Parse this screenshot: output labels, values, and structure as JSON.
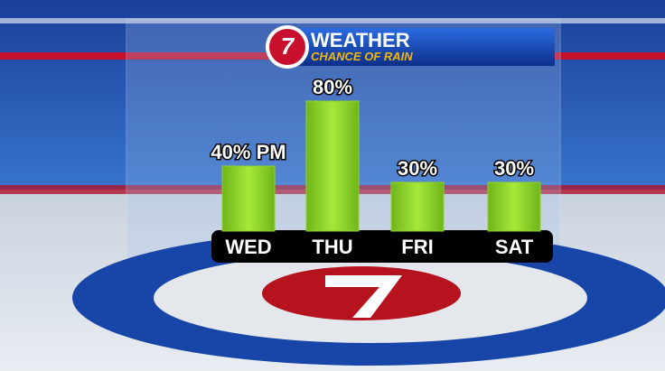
{
  "chart_data": {
    "type": "bar",
    "logo": "7",
    "title": "WEATHER",
    "subtitle": "CHANCE OF RAIN",
    "categories": [
      "WED",
      "THU",
      "FRI",
      "SAT"
    ],
    "values": [
      40,
      80,
      30,
      30
    ],
    "value_labels": [
      "40% PM",
      "80%",
      "30%",
      "30%"
    ],
    "color": "#8fd42a"
  }
}
